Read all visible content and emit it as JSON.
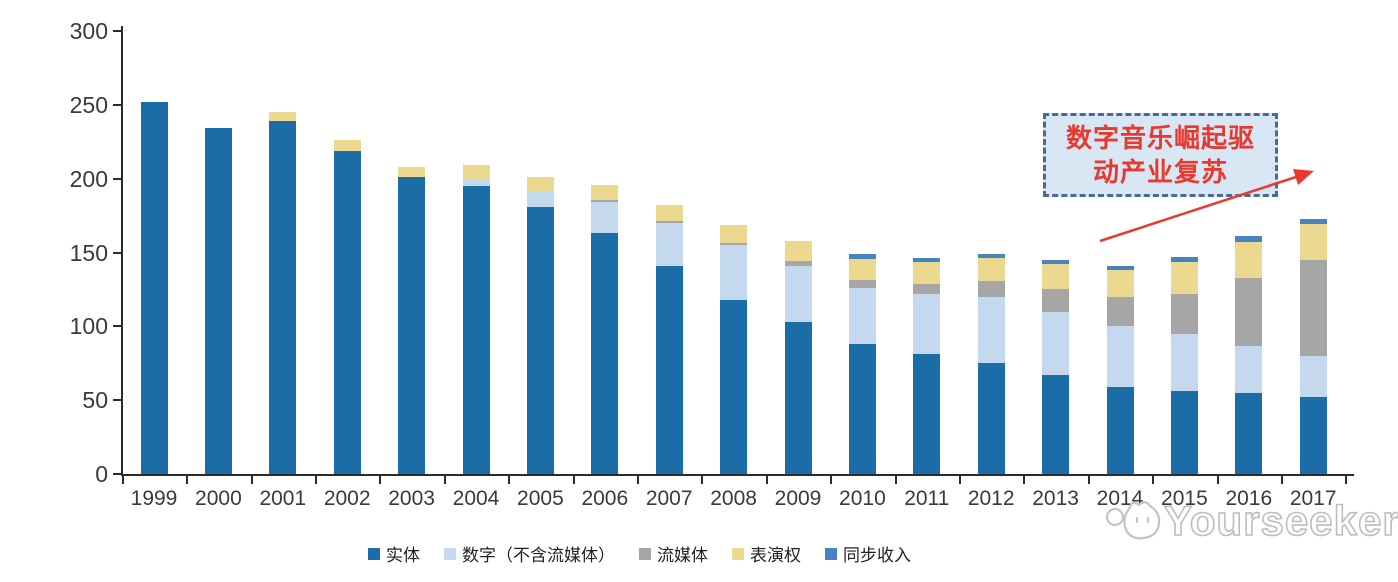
{
  "chart_data": {
    "type": "bar",
    "stacked": true,
    "title": "",
    "xlabel": "",
    "ylabel": "",
    "ylim": [
      0,
      300
    ],
    "yticks": [
      0,
      50,
      100,
      150,
      200,
      250,
      300
    ],
    "grid": false,
    "legend_position": "bottom",
    "categories": [
      "1999",
      "2000",
      "2001",
      "2002",
      "2003",
      "2004",
      "2005",
      "2006",
      "2007",
      "2008",
      "2009",
      "2010",
      "2011",
      "2012",
      "2013",
      "2014",
      "2015",
      "2016",
      "2017"
    ],
    "series": [
      {
        "key": "physical",
        "name": "实体",
        "color": "#1c6ca8",
        "values": [
          252,
          234,
          239,
          219,
          201,
          195,
          181,
          163,
          141,
          118,
          103,
          88,
          81,
          75,
          67,
          59,
          56,
          55,
          52
        ]
      },
      {
        "key": "digital",
        "name": "数字（不含流媒体）",
        "color": "#c4d8ee",
        "values": [
          0,
          0,
          0,
          0,
          0,
          5,
          10,
          21,
          29,
          37,
          38,
          38,
          41,
          45,
          43,
          41,
          39,
          32,
          28
        ]
      },
      {
        "key": "streaming",
        "name": "流媒体",
        "color": "#a6a6a6",
        "values": [
          0,
          0,
          0,
          0,
          0,
          0,
          0,
          1.5,
          1.5,
          1.5,
          3,
          5.5,
          7,
          11,
          15,
          20,
          27,
          46,
          65
        ]
      },
      {
        "key": "performance",
        "name": "表演权",
        "color": "#ead98f",
        "values": [
          0,
          0,
          6,
          7,
          7,
          9,
          10,
          10,
          11,
          12,
          14,
          14,
          14.5,
          15,
          17,
          18,
          21.5,
          24,
          24
        ]
      },
      {
        "key": "sync",
        "name": "同步收入",
        "color": "#4783c0",
        "values": [
          0,
          0,
          0,
          0,
          0,
          0,
          0,
          0,
          0,
          0,
          0,
          3.5,
          3,
          3,
          3,
          3,
          3.5,
          4,
          4
        ]
      }
    ]
  },
  "annotation": {
    "line1": "数字音乐崛起驱",
    "line2": "动产业复苏",
    "text_color": "#e8392f",
    "border_color": "#4a6899",
    "fill_color": "#d9e6f4",
    "arrow_color": "#e8392f"
  },
  "watermark": {
    "text": "Yourseeker"
  },
  "colors": {
    "axis": "#2b2b2b",
    "tick_label": "#3a3a3a",
    "background": "#ffffff"
  }
}
